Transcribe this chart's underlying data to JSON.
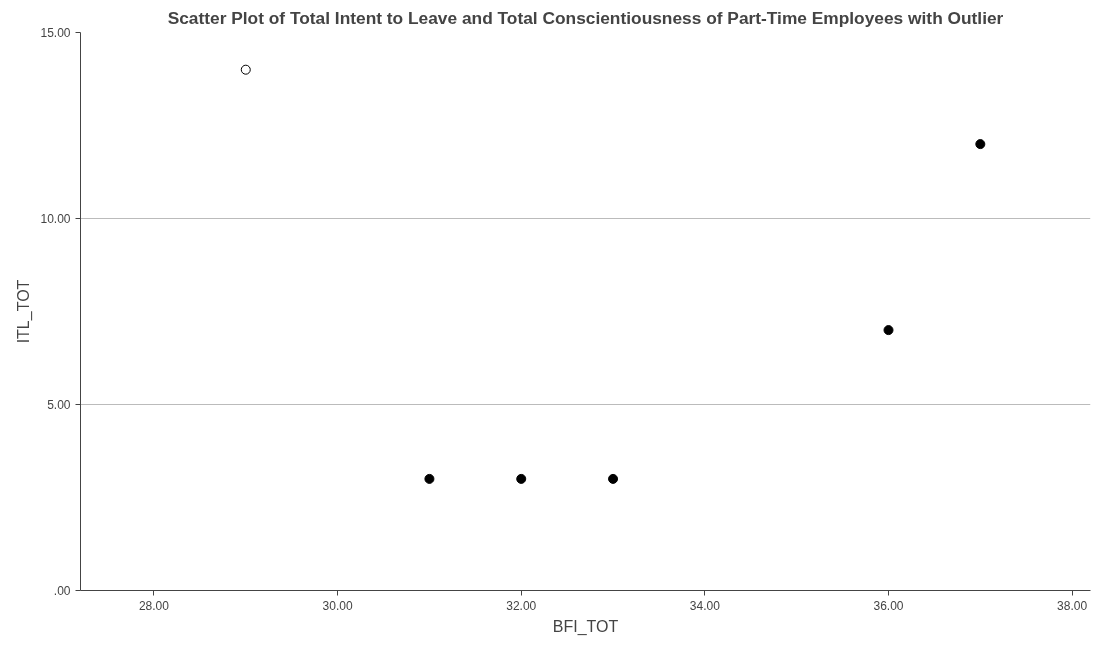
{
  "chart_data": {
    "type": "scatter",
    "title": "Scatter Plot of Total Intent to Leave and Total Conscientiousness of Part-Time Employees with Outlier",
    "xlabel": "BFI_TOT",
    "ylabel": "ITL_TOT",
    "series": [
      {
        "color": "#000000",
        "x": [
          31,
          32,
          33,
          36,
          37
        ],
        "values": [
          3,
          3,
          3,
          7,
          12
        ]
      },
      {
        "color": "#ffffff",
        "x": [
          29
        ],
        "values": [
          14
        ]
      }
    ],
    "xlim": [
      27.2,
      38.2
    ],
    "xticks": [
      {
        "value": 28,
        "label": "28.00"
      },
      {
        "value": 30,
        "label": "30.00"
      },
      {
        "value": 32,
        "label": "32.00"
      },
      {
        "value": 34,
        "label": "34.00"
      },
      {
        "value": 36,
        "label": "36.00"
      },
      {
        "value": 38,
        "label": "38.00"
      }
    ],
    "ylim": [
      0,
      15
    ],
    "yticks": [
      {
        "value": 0,
        "label": ".00"
      },
      {
        "value": 5,
        "label": "5.00"
      },
      {
        "value": 10,
        "label": "10.00"
      },
      {
        "value": 15,
        "label": "15.00"
      }
    ],
    "grid": "y",
    "marker": "circle"
  }
}
